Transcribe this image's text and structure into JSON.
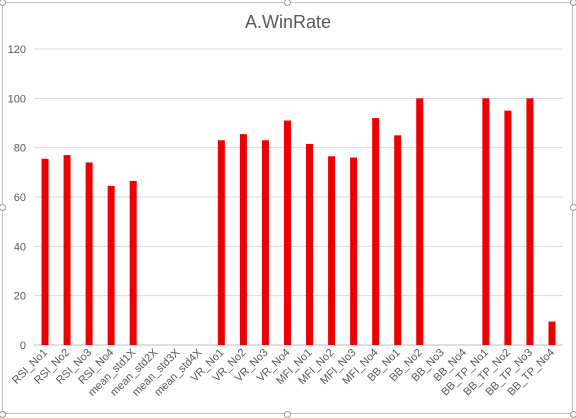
{
  "chart_data": {
    "type": "bar",
    "title": "A.WinRate",
    "xlabel": "",
    "ylabel": "",
    "ylim": [
      0,
      120
    ],
    "yticks": [
      0,
      20,
      40,
      60,
      80,
      100,
      120
    ],
    "grid": true,
    "legend": "none",
    "bar_color": "#ee0000",
    "categories": [
      "RSI_No1",
      "RSI_No2",
      "RSI_No3",
      "RSI_No4",
      "mean_std1X",
      "mean_std2X",
      "mean_std3X",
      "mean_std4X",
      "VR_No1",
      "VR_No2",
      "VR_No3",
      "VR_No4",
      "MFI_No1",
      "MFI_No2",
      "MFI_No3",
      "MFI_No4",
      "BB_No1",
      "BB_No2",
      "BB_No3",
      "BB_No4",
      "BB_TP_No1",
      "BB_TP_No2",
      "BB_TP_No3",
      "BB_TP_No4"
    ],
    "values": [
      75.5,
      77,
      74,
      64.5,
      66.5,
      0,
      0,
      0,
      83,
      85.5,
      83,
      91,
      81.5,
      76.5,
      76,
      92,
      85,
      100,
      0,
      0,
      100,
      95,
      100,
      9.5
    ]
  }
}
